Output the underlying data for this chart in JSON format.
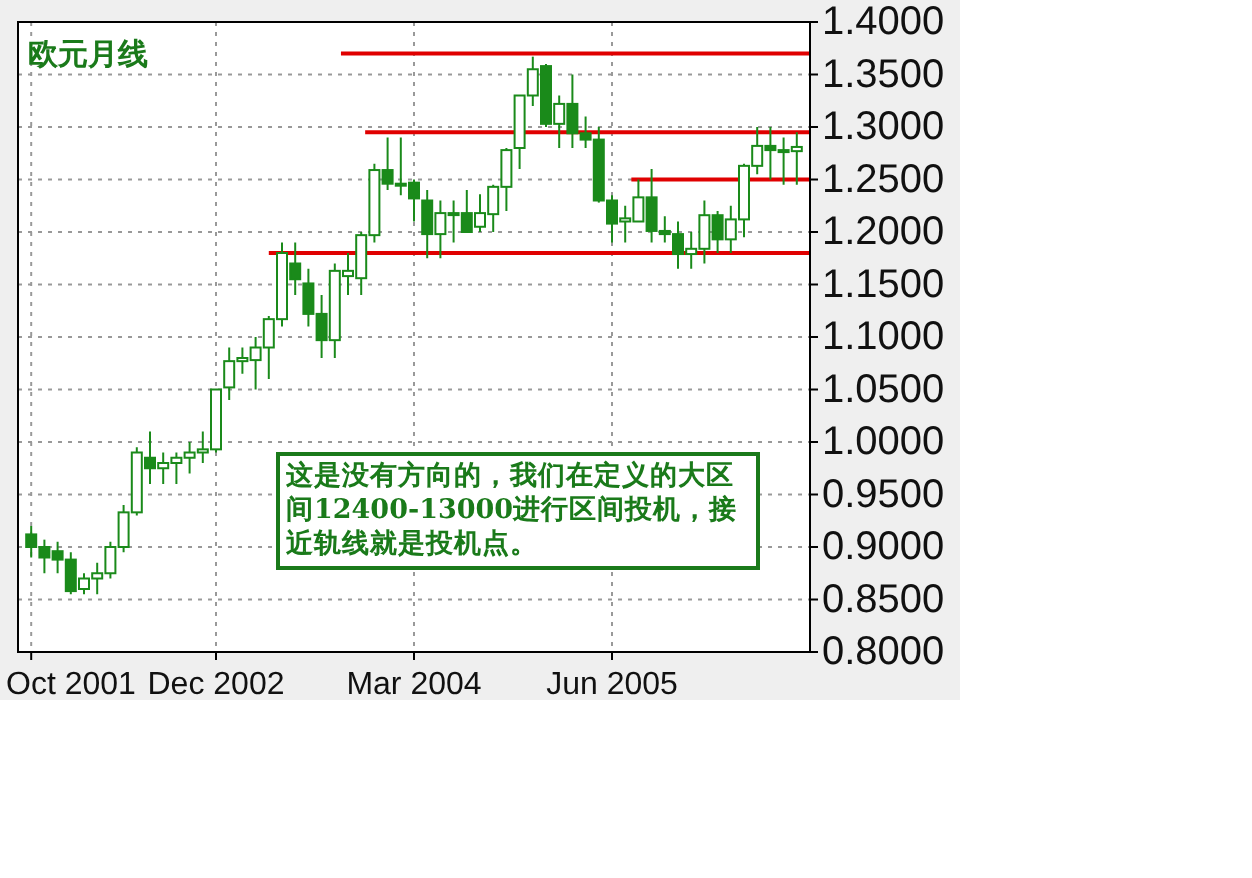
{
  "chart_data": {
    "type": "candlestick",
    "title": "欧元月线",
    "x": [
      "2001-10",
      "2001-11",
      "2001-12",
      "2002-01",
      "2002-02",
      "2002-03",
      "2002-04",
      "2002-05",
      "2002-06",
      "2002-07",
      "2002-08",
      "2002-09",
      "2002-10",
      "2002-11",
      "2002-12",
      "2003-01",
      "2003-02",
      "2003-03",
      "2003-04",
      "2003-05",
      "2003-06",
      "2003-07",
      "2003-08",
      "2003-09",
      "2003-10",
      "2003-11",
      "2003-12",
      "2004-01",
      "2004-02",
      "2004-03",
      "2004-04",
      "2004-05",
      "2004-06",
      "2004-07",
      "2004-08",
      "2004-09",
      "2004-10",
      "2004-11",
      "2004-12",
      "2005-01",
      "2005-02",
      "2005-03",
      "2005-04",
      "2005-05",
      "2005-06",
      "2005-07",
      "2005-08",
      "2005-09",
      "2005-10",
      "2005-11",
      "2005-12",
      "2006-01",
      "2006-02",
      "2006-03",
      "2006-04",
      "2006-05",
      "2006-06",
      "2006-07",
      "2006-08"
    ],
    "ohlc": [
      [
        0.912,
        0.92,
        0.89,
        0.9
      ],
      [
        0.9,
        0.907,
        0.875,
        0.89
      ],
      [
        0.896,
        0.905,
        0.875,
        0.888
      ],
      [
        0.888,
        0.895,
        0.855,
        0.858
      ],
      [
        0.86,
        0.875,
        0.855,
        0.87
      ],
      [
        0.87,
        0.885,
        0.855,
        0.875
      ],
      [
        0.875,
        0.905,
        0.87,
        0.9
      ],
      [
        0.9,
        0.94,
        0.895,
        0.933
      ],
      [
        0.933,
        0.995,
        0.93,
        0.99
      ],
      [
        0.985,
        1.01,
        0.96,
        0.975
      ],
      [
        0.975,
        0.99,
        0.96,
        0.98
      ],
      [
        0.98,
        0.99,
        0.96,
        0.985
      ],
      [
        0.985,
        1.0,
        0.97,
        0.99
      ],
      [
        0.99,
        1.01,
        0.98,
        0.993
      ],
      [
        0.993,
        1.05,
        0.99,
        1.05
      ],
      [
        1.052,
        1.09,
        1.04,
        1.077
      ],
      [
        1.077,
        1.09,
        1.065,
        1.08
      ],
      [
        1.078,
        1.1,
        1.05,
        1.09
      ],
      [
        1.09,
        1.12,
        1.06,
        1.117
      ],
      [
        1.117,
        1.19,
        1.11,
        1.18
      ],
      [
        1.17,
        1.19,
        1.14,
        1.155
      ],
      [
        1.151,
        1.165,
        1.11,
        1.122
      ],
      [
        1.122,
        1.14,
        1.08,
        1.097
      ],
      [
        1.097,
        1.17,
        1.08,
        1.163
      ],
      [
        1.158,
        1.18,
        1.14,
        1.163
      ],
      [
        1.156,
        1.2,
        1.14,
        1.197
      ],
      [
        1.197,
        1.265,
        1.19,
        1.259
      ],
      [
        1.259,
        1.29,
        1.24,
        1.246
      ],
      [
        1.246,
        1.29,
        1.235,
        1.245
      ],
      [
        1.247,
        1.25,
        1.21,
        1.232
      ],
      [
        1.23,
        1.24,
        1.175,
        1.198
      ],
      [
        1.198,
        1.23,
        1.175,
        1.218
      ],
      [
        1.218,
        1.23,
        1.19,
        1.218
      ],
      [
        1.218,
        1.24,
        1.2,
        1.2
      ],
      [
        1.205,
        1.236,
        1.2,
        1.218
      ],
      [
        1.217,
        1.245,
        1.2,
        1.243
      ],
      [
        1.243,
        1.28,
        1.22,
        1.278
      ],
      [
        1.28,
        1.33,
        1.26,
        1.33
      ],
      [
        1.33,
        1.367,
        1.32,
        1.355
      ],
      [
        1.358,
        1.36,
        1.3,
        1.303
      ],
      [
        1.303,
        1.33,
        1.28,
        1.322
      ],
      [
        1.322,
        1.35,
        1.28,
        1.294
      ],
      [
        1.294,
        1.31,
        1.28,
        1.288
      ],
      [
        1.288,
        1.3,
        1.228,
        1.23
      ],
      [
        1.23,
        1.235,
        1.19,
        1.208
      ],
      [
        1.21,
        1.225,
        1.19,
        1.213
      ],
      [
        1.21,
        1.25,
        1.21,
        1.233
      ],
      [
        1.233,
        1.26,
        1.19,
        1.201
      ],
      [
        1.201,
        1.215,
        1.19,
        1.198
      ],
      [
        1.198,
        1.21,
        1.165,
        1.179
      ],
      [
        1.179,
        1.2,
        1.165,
        1.184
      ],
      [
        1.184,
        1.23,
        1.17,
        1.216
      ],
      [
        1.216,
        1.22,
        1.18,
        1.193
      ],
      [
        1.193,
        1.225,
        1.18,
        1.212
      ],
      [
        1.212,
        1.265,
        1.195,
        1.263
      ],
      [
        1.263,
        1.3,
        1.255,
        1.282
      ],
      [
        1.282,
        1.3,
        1.25,
        1.278
      ],
      [
        1.278,
        1.29,
        1.245,
        1.277
      ],
      [
        1.277,
        1.295,
        1.245,
        1.281
      ]
    ],
    "series": [
      {
        "type": "line",
        "color": "#e00000",
        "x": [
          "2003-09-15",
          "2006-09"
        ],
        "values": [
          1.37,
          1.37
        ]
      },
      {
        "type": "line",
        "color": "#e00000",
        "x": [
          "2003-11-10",
          "2006-09"
        ],
        "values": [
          1.295,
          1.295
        ]
      },
      {
        "type": "line",
        "color": "#e00000",
        "x": [
          "2005-07-15",
          "2006-09"
        ],
        "values": [
          1.25,
          1.25
        ]
      },
      {
        "type": "line",
        "color": "#e00000",
        "x": [
          "2003-04",
          "2006-09"
        ],
        "values": [
          1.18,
          1.18
        ]
      }
    ],
    "xlim": [
      "2001-09",
      "2006-09"
    ],
    "xticks": [
      {
        "value": "2001-10",
        "label": "Oct 2001"
      },
      {
        "value": "2002-12",
        "label": "Dec 2002"
      },
      {
        "value": "2004-03",
        "label": "Mar 2004"
      },
      {
        "value": "2005-06",
        "label": "Jun 2005"
      }
    ],
    "ylim": [
      0.8,
      1.4
    ],
    "yticks": [
      {
        "value": 0.8,
        "label": "0.8000"
      },
      {
        "value": 0.85,
        "label": "0.8500"
      },
      {
        "value": 0.9,
        "label": "0.9000"
      },
      {
        "value": 0.95,
        "label": "0.9500"
      },
      {
        "value": 1.0,
        "label": "1.0000"
      },
      {
        "value": 1.05,
        "label": "1.0500"
      },
      {
        "value": 1.1,
        "label": "1.1000"
      },
      {
        "value": 1.15,
        "label": "1.1500"
      },
      {
        "value": 1.2,
        "label": "1.2000"
      },
      {
        "value": 1.25,
        "label": "1.2500"
      },
      {
        "value": 1.3,
        "label": "1.3000"
      },
      {
        "value": 1.35,
        "label": "1.3500"
      },
      {
        "value": 1.4,
        "label": "1.4000"
      }
    ],
    "grid": true,
    "annotations": [
      "这是没有方向的，我们在定义的大区间12400-13000进行区间投机，接近轨线就是投机点。"
    ]
  }
}
